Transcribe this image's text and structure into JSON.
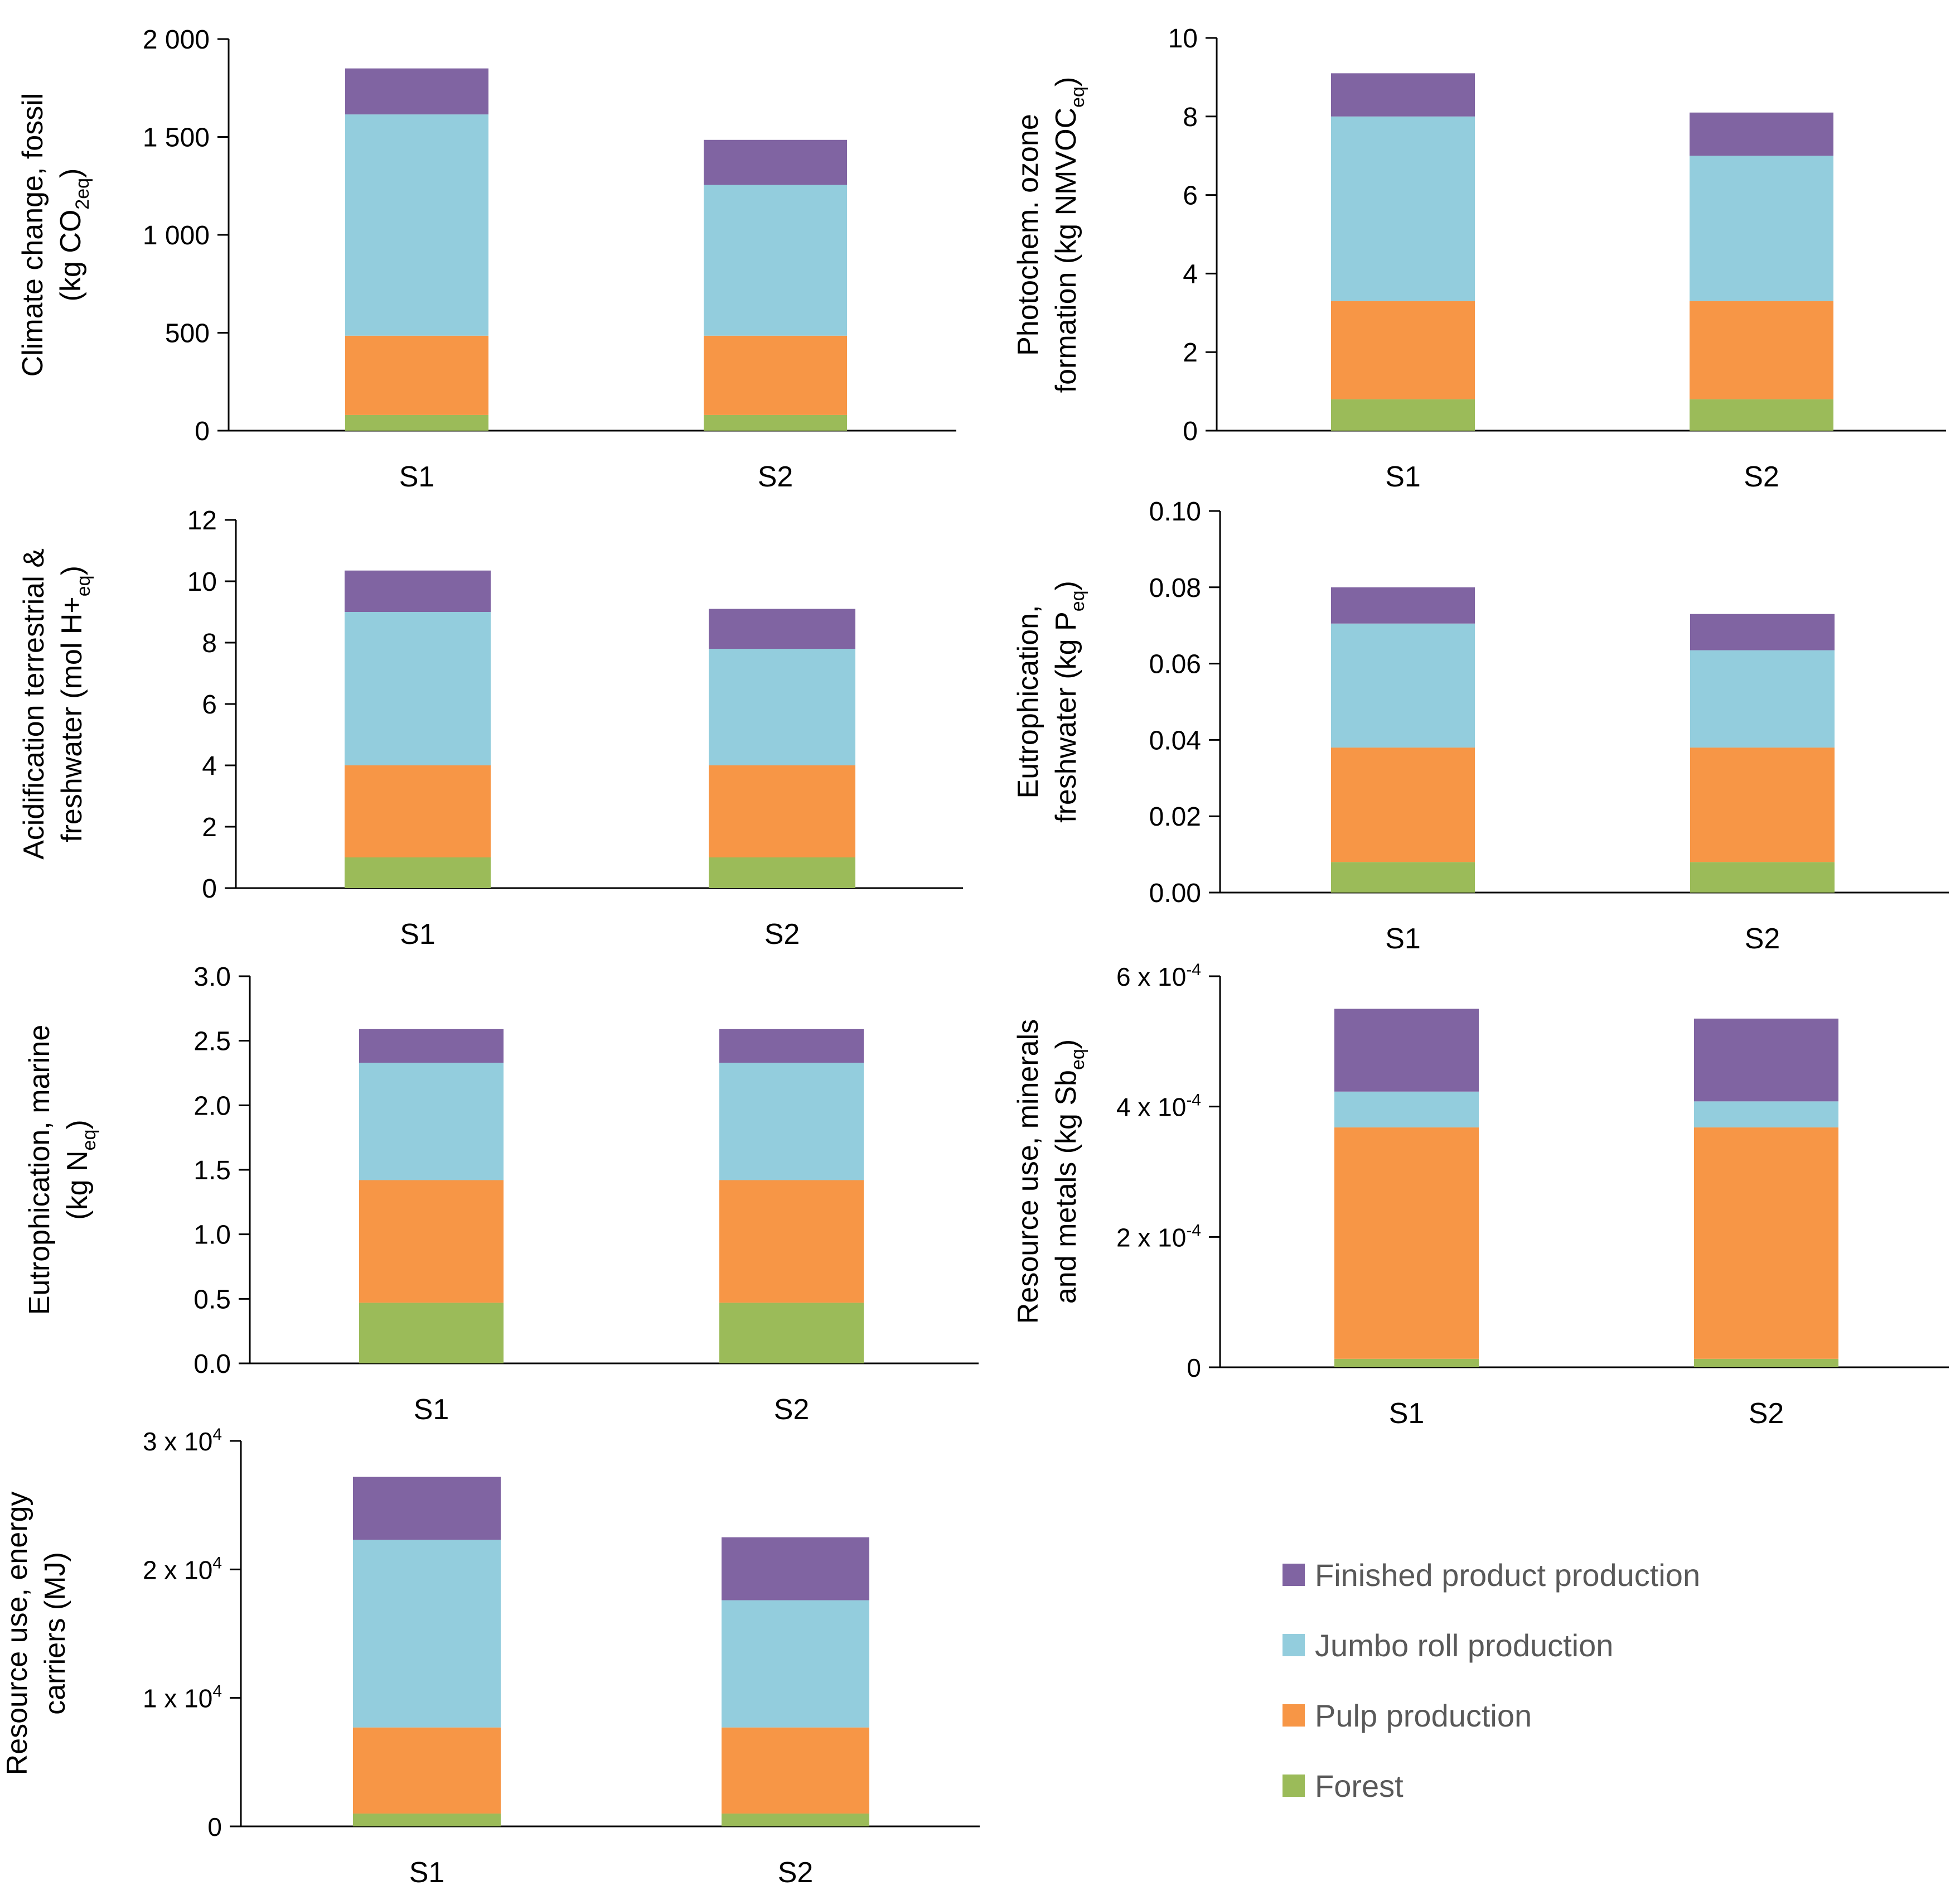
{
  "legend": {
    "items": [
      {
        "label": "Finished product production",
        "color": "#8064A2"
      },
      {
        "label": "Jumbo roll production",
        "color": "#93CDDD"
      },
      {
        "label": "Pulp production",
        "color": "#F79646"
      },
      {
        "label": "Forest",
        "color": "#9BBB59"
      }
    ]
  },
  "chart_data": [
    {
      "type": "bar",
      "stacked": true,
      "ylabel_lines": [
        [
          {
            "t": "Climate change, fossil"
          }
        ],
        [
          {
            "t": "(kg CO"
          },
          {
            "t": "2eq",
            "sub": true
          },
          {
            "t": ")"
          }
        ]
      ],
      "categories": [
        "S1",
        "S2"
      ],
      "ylim": [
        0,
        2000
      ],
      "yticks": [
        0,
        500,
        1000,
        1500,
        2000
      ],
      "ytick_labels": [
        "0",
        "500",
        "1 000",
        "1 500",
        "2 000"
      ],
      "series": [
        {
          "name": "Forest",
          "values": [
            80,
            80
          ]
        },
        {
          "name": "Pulp production",
          "values": [
            405,
            405
          ]
        },
        {
          "name": "Jumbo roll production",
          "values": [
            1130,
            770
          ]
        },
        {
          "name": "Finished product production",
          "values": [
            235,
            230
          ]
        }
      ]
    },
    {
      "type": "bar",
      "stacked": true,
      "ylabel_lines": [
        [
          {
            "t": "Photochem. ozone"
          }
        ],
        [
          {
            "t": "formation (kg NMVOC"
          },
          {
            "t": "eq",
            "sub": true
          },
          {
            "t": ")"
          }
        ]
      ],
      "categories": [
        "S1",
        "S2"
      ],
      "ylim": [
        0,
        10
      ],
      "yticks": [
        0,
        2,
        4,
        6,
        8,
        10
      ],
      "ytick_labels": [
        "0",
        "2",
        "4",
        "6",
        "8",
        "10"
      ],
      "series": [
        {
          "name": "Forest",
          "values": [
            0.8,
            0.8
          ]
        },
        {
          "name": "Pulp production",
          "values": [
            2.5,
            2.5
          ]
        },
        {
          "name": "Jumbo roll production",
          "values": [
            4.7,
            3.7
          ]
        },
        {
          "name": "Finished product production",
          "values": [
            1.1,
            1.1
          ]
        }
      ]
    },
    {
      "type": "bar",
      "stacked": true,
      "ylabel_lines": [
        [
          {
            "t": "Acidification terrestrial &"
          }
        ],
        [
          {
            "t": "freshwater (mol H+"
          },
          {
            "t": "eq",
            "sub": true
          },
          {
            "t": ")"
          }
        ]
      ],
      "categories": [
        "S1",
        "S2"
      ],
      "ylim": [
        0,
        12
      ],
      "yticks": [
        0,
        2,
        4,
        6,
        8,
        10,
        12
      ],
      "ytick_labels": [
        "0",
        "2",
        "4",
        "6",
        "8",
        "10",
        "12"
      ],
      "series": [
        {
          "name": "Forest",
          "values": [
            1.0,
            1.0
          ]
        },
        {
          "name": "Pulp production",
          "values": [
            3.0,
            3.0
          ]
        },
        {
          "name": "Jumbo roll production",
          "values": [
            5.0,
            3.8
          ]
        },
        {
          "name": "Finished product production",
          "values": [
            1.35,
            1.3
          ]
        }
      ]
    },
    {
      "type": "bar",
      "stacked": true,
      "ylabel_lines": [
        [
          {
            "t": "Eutrophication,"
          }
        ],
        [
          {
            "t": "freshwater  (kg P"
          },
          {
            "t": "eq",
            "sub": true
          },
          {
            "t": ")"
          }
        ]
      ],
      "categories": [
        "S1",
        "S2"
      ],
      "ylim": [
        0,
        0.1
      ],
      "yticks": [
        0,
        0.02,
        0.04,
        0.06,
        0.08,
        0.1
      ],
      "ytick_labels": [
        "0.00",
        "0.02",
        "0.04",
        "0.06",
        "0.08",
        "0.10"
      ],
      "series": [
        {
          "name": "Forest",
          "values": [
            0.008,
            0.008
          ]
        },
        {
          "name": "Pulp production",
          "values": [
            0.03,
            0.03
          ]
        },
        {
          "name": "Jumbo roll production",
          "values": [
            0.0325,
            0.0255
          ]
        },
        {
          "name": "Finished product production",
          "values": [
            0.0095,
            0.0095
          ]
        }
      ]
    },
    {
      "type": "bar",
      "stacked": true,
      "ylabel_lines": [
        [
          {
            "t": "Eutrophication, marine"
          }
        ],
        [
          {
            "t": "(kg N"
          },
          {
            "t": "eq",
            "sub": true
          },
          {
            "t": ")"
          }
        ]
      ],
      "categories": [
        "S1",
        "S2"
      ],
      "ylim": [
        0,
        3.0
      ],
      "yticks": [
        0,
        0.5,
        1.0,
        1.5,
        2.0,
        2.5,
        3.0
      ],
      "ytick_labels": [
        "0.0",
        "0.5",
        "1.0",
        "1.5",
        "2.0",
        "2.5",
        "3.0"
      ],
      "series": [
        {
          "name": "Forest",
          "values": [
            0.47,
            0.47
          ]
        },
        {
          "name": "Pulp production",
          "values": [
            0.95,
            0.95
          ]
        },
        {
          "name": "Jumbo roll production",
          "values": [
            0.91,
            0.91
          ]
        },
        {
          "name": "Finished product production",
          "values": [
            0.26,
            0.26
          ]
        }
      ]
    },
    {
      "type": "bar",
      "stacked": true,
      "ylabel_lines": [
        [
          {
            "t": "Resource use, minerals"
          }
        ],
        [
          {
            "t": "and metals (kg Sb"
          },
          {
            "t": "eq",
            "sub": true
          },
          {
            "t": ")"
          }
        ]
      ],
      "categories": [
        "S1",
        "S2"
      ],
      "ylim": [
        0,
        0.0006
      ],
      "yticks": [
        0,
        0.0002,
        0.0004,
        0.0006
      ],
      "ytick_labels": [
        [
          {
            "t": "0"
          }
        ],
        [
          {
            "t": "2 x 10"
          },
          {
            "t": "-4",
            "sup": true
          }
        ],
        [
          {
            "t": "4 x 10"
          },
          {
            "t": "-4",
            "sup": true
          }
        ],
        [
          {
            "t": "6 x 10"
          },
          {
            "t": "-4",
            "sup": true
          }
        ]
      ],
      "series": [
        {
          "name": "Forest",
          "values": [
            1.3e-05,
            1.3e-05
          ]
        },
        {
          "name": "Pulp production",
          "values": [
            0.000355,
            0.000355
          ]
        },
        {
          "name": "Jumbo roll production",
          "values": [
            5.5e-05,
            4e-05
          ]
        },
        {
          "name": "Finished product production",
          "values": [
            0.000127,
            0.000127
          ]
        }
      ]
    },
    {
      "type": "bar",
      "stacked": true,
      "ylabel_lines": [
        [
          {
            "t": "Resource use, energy"
          }
        ],
        [
          {
            "t": "carriers (MJ)"
          }
        ]
      ],
      "categories": [
        "S1",
        "S2"
      ],
      "ylim": [
        0,
        30000
      ],
      "yticks": [
        0,
        10000,
        20000,
        30000
      ],
      "ytick_labels": [
        [
          {
            "t": "0"
          }
        ],
        [
          {
            "t": "1 x 10"
          },
          {
            "t": "4",
            "sup": true
          }
        ],
        [
          {
            "t": "2 x 10"
          },
          {
            "t": "4",
            "sup": true
          }
        ],
        [
          {
            "t": "3 x 10"
          },
          {
            "t": "4",
            "sup": true
          }
        ]
      ],
      "series": [
        {
          "name": "Forest",
          "values": [
            1000,
            1000
          ]
        },
        {
          "name": "Pulp production",
          "values": [
            6700,
            6700
          ]
        },
        {
          "name": "Jumbo roll production",
          "values": [
            14600,
            9900
          ]
        },
        {
          "name": "Finished product production",
          "values": [
            4900,
            4900
          ]
        }
      ]
    }
  ]
}
